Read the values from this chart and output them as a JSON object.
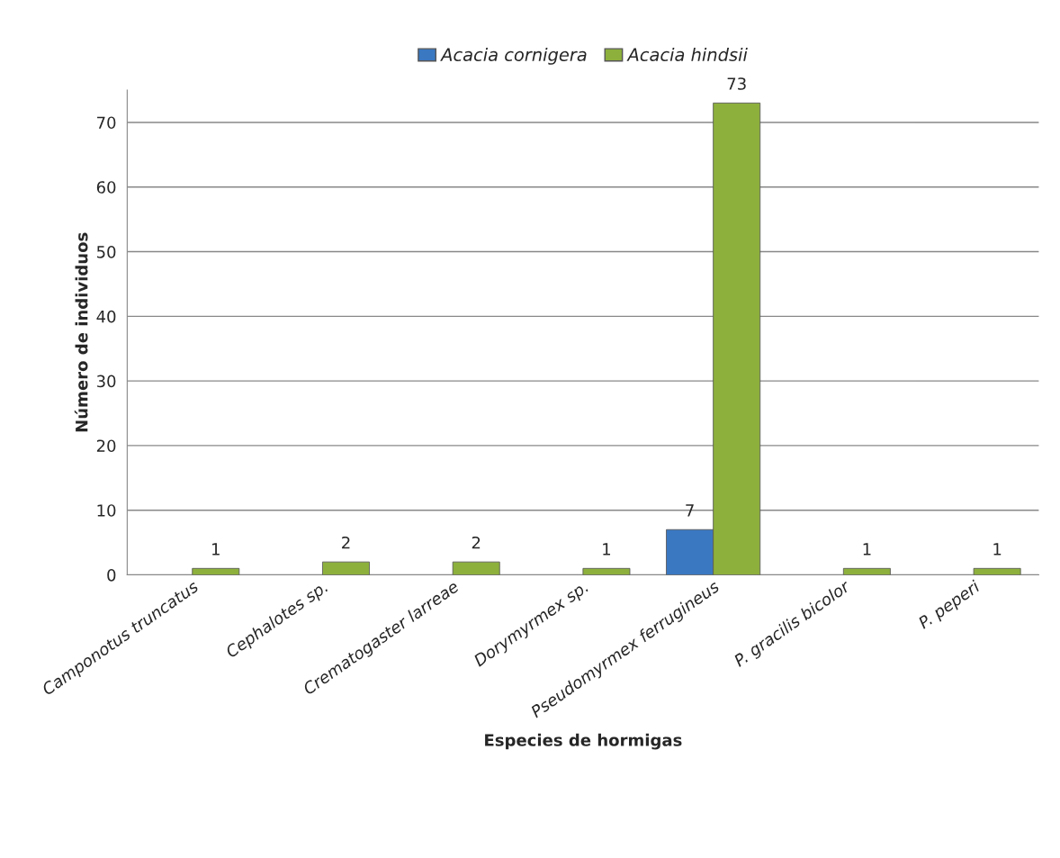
{
  "chart_data": {
    "type": "bar",
    "xlabel": "Especies de hormigas",
    "ylabel": "Número de individuos",
    "categories": [
      "Camponotus truncatus",
      "Cephalotes sp.",
      "Crematogaster larreae",
      "Dorymyrmex sp.",
      "Pseudomyrmex ferrugineus",
      "P. gracilis bicolor",
      "P. peperi"
    ],
    "series": [
      {
        "name": "Acacia cornigera",
        "color": "#3a78c2",
        "values": [
          null,
          null,
          null,
          null,
          7,
          null,
          null
        ]
      },
      {
        "name": "Acacia hindsii",
        "color": "#8db03c",
        "values": [
          1,
          2,
          2,
          1,
          73,
          1,
          1
        ]
      }
    ],
    "ylim": [
      0,
      75
    ],
    "yticks": [
      0,
      10,
      20,
      30,
      40,
      50,
      60,
      70
    ],
    "grid": "y",
    "legend": "top",
    "data_labels": true
  }
}
